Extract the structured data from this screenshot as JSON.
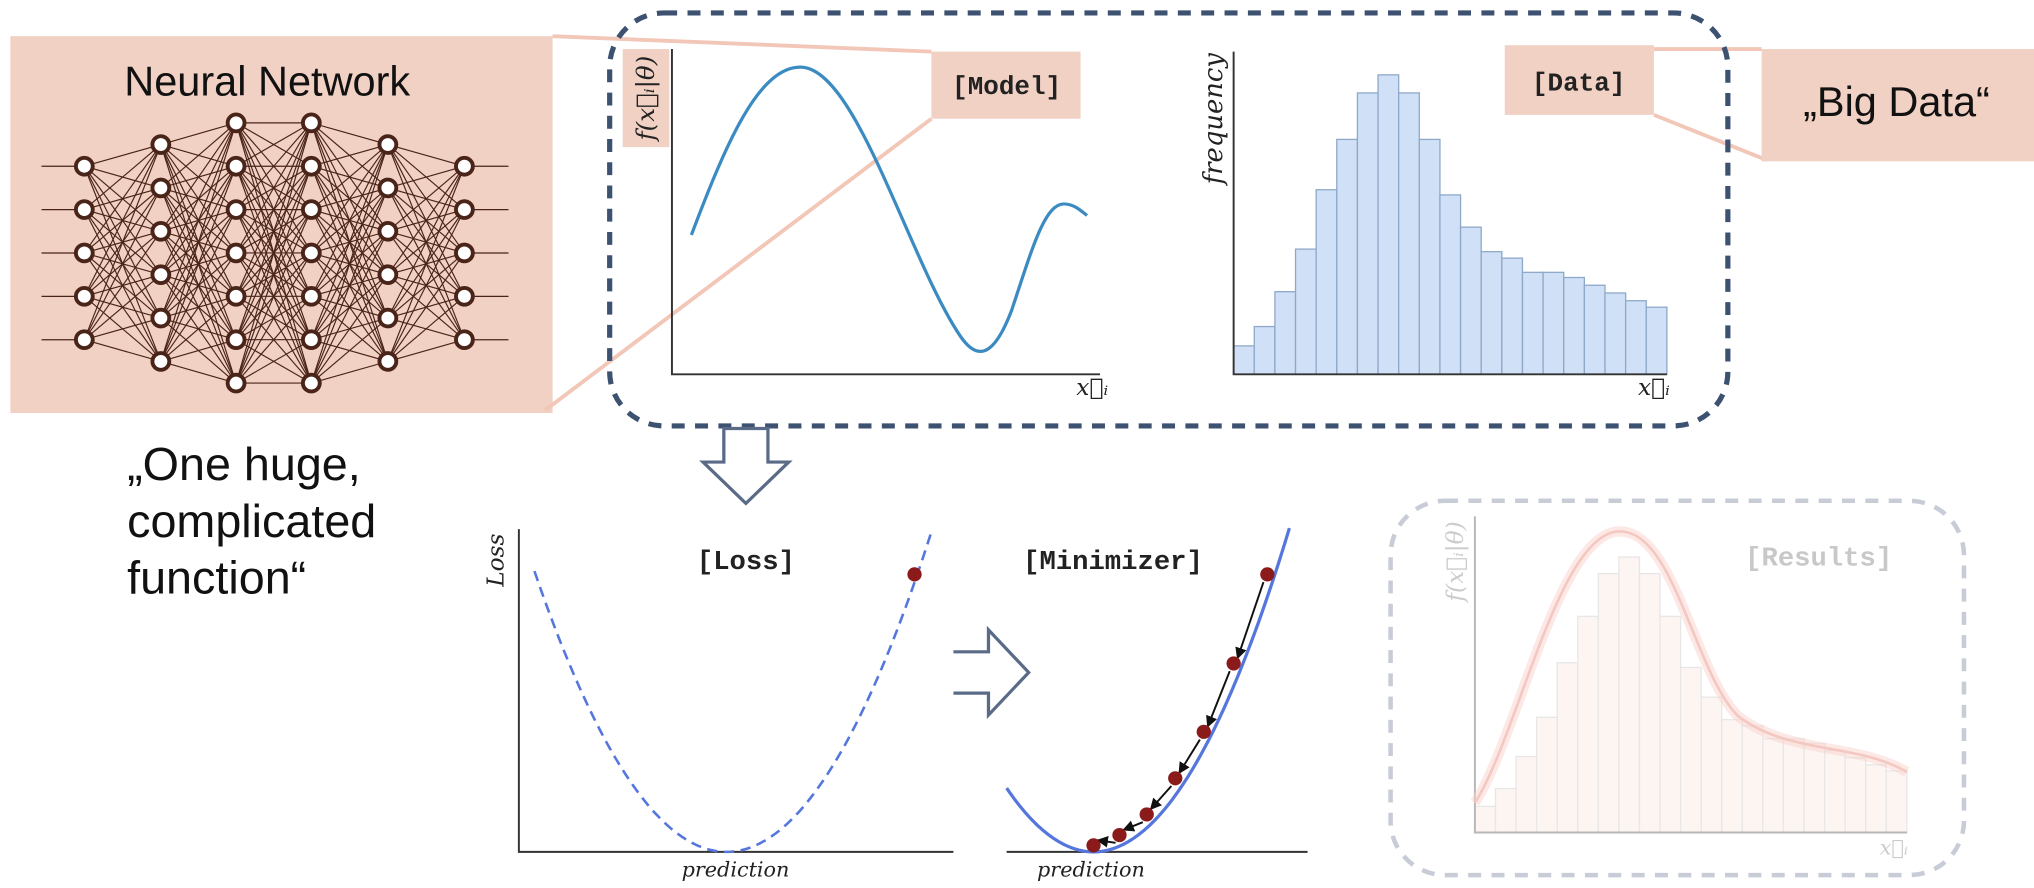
{
  "neural_network": {
    "title": "Neural Network",
    "caption": [
      "„One huge,",
      "complicated",
      "function“"
    ]
  },
  "big_data": "„Big Data“",
  "model_panel": {
    "label": "[Model]",
    "y_label": "f(x⃗ᵢ|θ)",
    "x_label": "x⃗ᵢ"
  },
  "data_panel": {
    "label": "[Data]",
    "y_label": "frequency",
    "x_label": "x⃗ᵢ"
  },
  "loss_panel": {
    "label": "[Loss]",
    "y_label": "Loss",
    "x_label": "prediction"
  },
  "minimizer_panel": {
    "label": "[Minimizer]",
    "x_label": "prediction"
  },
  "results_panel": {
    "label": "[Results]",
    "y_label": "f(x⃗ᵢ|θ)",
    "x_label": "x⃗ᵢ"
  }
}
